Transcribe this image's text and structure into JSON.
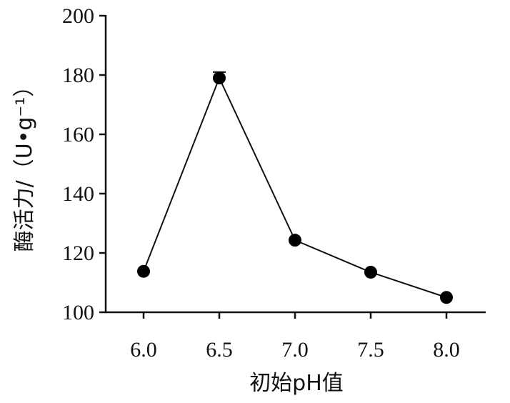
{
  "chart_data": {
    "type": "line",
    "xlabel": "初始pH值",
    "ylabel": "酶活力/（U•g⁻¹）",
    "x": [
      "6.0",
      "6.5",
      "7.0",
      "7.5",
      "8.0"
    ],
    "series": [
      {
        "values": [
          113.8,
          179.0,
          124.3,
          113.5,
          105.0
        ],
        "errors": [
          0,
          2.0,
          0,
          0,
          0
        ]
      }
    ],
    "ylim": [
      100,
      200
    ],
    "yticks": [
      "100",
      "120",
      "140",
      "160",
      "180",
      "200"
    ],
    "grid": false,
    "line_color": "#111111",
    "marker_color": "#000000"
  }
}
